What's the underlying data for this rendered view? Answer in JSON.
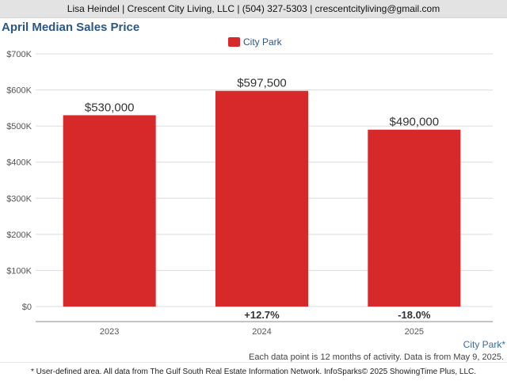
{
  "header": {
    "contact": "Lisa Heindel | Crescent City Living, LLC | (504) 327-5303 | crescentcityliving@gmail.com"
  },
  "chart_data": {
    "type": "bar",
    "title": "April Median Sales Price",
    "categories": [
      "2023",
      "2024",
      "2025"
    ],
    "series": [
      {
        "name": "City Park",
        "values": [
          530000,
          597500,
          490000
        ],
        "color": "#d7282a"
      }
    ],
    "data_labels": [
      "$530,000",
      "$597,500",
      "$490,000"
    ],
    "change_labels": [
      "",
      "+12.7%",
      "-18.0%"
    ],
    "yticks": [
      "$0",
      "$100K",
      "$200K",
      "$300K",
      "$400K",
      "$500K",
      "$600K",
      "$700K"
    ],
    "ylim": [
      0,
      700000
    ],
    "grid": true,
    "legend": "top-center"
  },
  "notes": {
    "area_label": "City Park*",
    "data_note": "Each data point is 12 months of activity. Data is from May 9, 2025.",
    "footer": "* User-defined area. All data from The Gulf South Real Estate Information Network. InfoSparks© 2025 ShowingTime Plus, LLC."
  }
}
